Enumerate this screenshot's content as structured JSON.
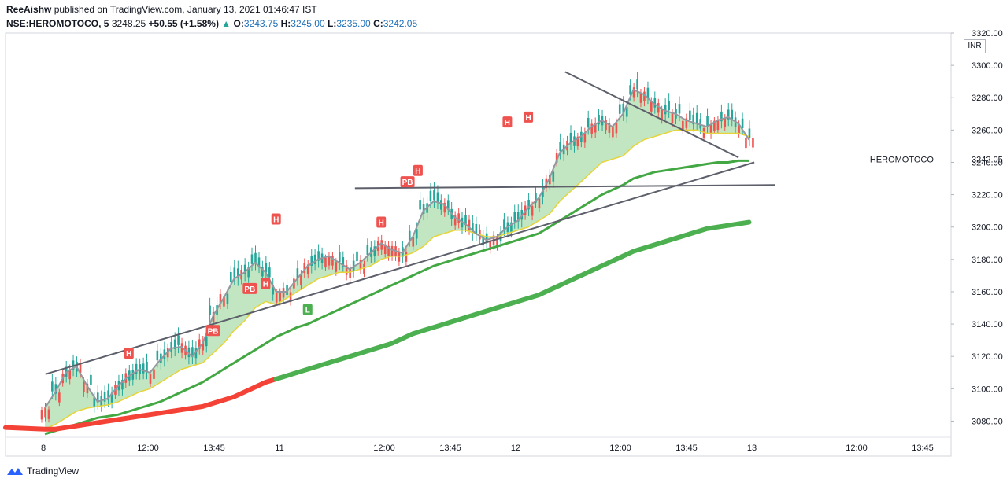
{
  "header": {
    "author": "ReeAishw",
    "published_text": "published on TradingView.com, January 13, 2021 01:46:47 IST",
    "symbol": "NSE:HEROMOTOCO, 5",
    "last": "3248.25",
    "change": "+50.55 (+1.58%)",
    "change_arrow": "▲",
    "o_label": "O:",
    "o": "3243.75",
    "h_label": "H:",
    "h": "3245.00",
    "l_label": "L:",
    "l": "3235.00",
    "c_label": "C:",
    "c": "3242.05"
  },
  "currency": "INR",
  "footer": {
    "brand": "TradingView"
  },
  "colors": {
    "up": "#26a69a",
    "down": "#ef5350",
    "ema_gray": "#9598a1",
    "ema_yellow": "#e6d43a",
    "band": "#8fd18f",
    "ema_green": "#43a843",
    "ema_red": "#f44336",
    "trend": "#5d606b",
    "marker": "#ef5350"
  },
  "chart_data": {
    "type": "line",
    "symbol": "HEROMOTOCO",
    "last_price_label": "3242.05",
    "ylim": [
      3070,
      3320
    ],
    "y_ticks": [
      3080,
      3100,
      3120,
      3140,
      3160,
      3180,
      3200,
      3220,
      3240,
      3260,
      3280,
      3300,
      3320
    ],
    "x_ticks": [
      "8",
      "12:00",
      "13:45",
      "11",
      "12:00",
      "13:45",
      "12",
      "12:00",
      "13:45",
      "13",
      "12:00",
      "13:45"
    ],
    "series": [
      {
        "name": "",
        "style": "ema_gray",
        "values": [
          3088,
          3098,
          3110,
          3114,
          3102,
          3092,
          3094,
          3102,
          3108,
          3112,
          3110,
          3118,
          3125,
          3126,
          3120,
          3128,
          3145,
          3156,
          3168,
          3172,
          3178,
          3172,
          3160,
          3160,
          3168,
          3176,
          3180,
          3182,
          3178,
          3174,
          3178,
          3184,
          3190,
          3186,
          3184,
          3194,
          3210,
          3216,
          3214,
          3206,
          3202,
          3196,
          3192,
          3194,
          3200,
          3204,
          3212,
          3218,
          3230,
          3246,
          3252,
          3256,
          3262,
          3266,
          3262,
          3270,
          3285,
          3282,
          3276,
          3272,
          3270,
          3266,
          3264,
          3262,
          3266,
          3268,
          3264,
          3254
        ]
      },
      {
        "name": "",
        "style": "ema_yellow",
        "values": [
          3075,
          3078,
          3082,
          3086,
          3088,
          3089,
          3090,
          3092,
          3095,
          3098,
          3100,
          3104,
          3108,
          3112,
          3114,
          3116,
          3122,
          3128,
          3136,
          3142,
          3150,
          3154,
          3152,
          3156,
          3160,
          3164,
          3168,
          3170,
          3172,
          3172,
          3174,
          3176,
          3180,
          3182,
          3182,
          3184,
          3188,
          3194,
          3196,
          3198,
          3198,
          3196,
          3194,
          3194,
          3196,
          3198,
          3200,
          3204,
          3208,
          3216,
          3222,
          3228,
          3234,
          3240,
          3242,
          3244,
          3250,
          3254,
          3256,
          3258,
          3260,
          3260,
          3260,
          3258,
          3258,
          3258,
          3258,
          3256
        ]
      },
      {
        "name": "",
        "style": "ema_green",
        "values": [
          3072,
          3074,
          3076,
          3078,
          3080,
          3082,
          3083,
          3084,
          3086,
          3088,
          3090,
          3092,
          3095,
          3098,
          3101,
          3104,
          3108,
          3112,
          3116,
          3120,
          3124,
          3128,
          3132,
          3135,
          3138,
          3140,
          3143,
          3146,
          3149,
          3152,
          3155,
          3158,
          3161,
          3164,
          3167,
          3170,
          3173,
          3176,
          3178,
          3180,
          3182,
          3184,
          3186,
          3188,
          3190,
          3192,
          3194,
          3196,
          3200,
          3204,
          3208,
          3212,
          3216,
          3220,
          3223,
          3226,
          3230,
          3232,
          3234,
          3235,
          3236,
          3237,
          3238,
          3239,
          3240,
          3240,
          3241,
          3241
        ]
      },
      {
        "name": "",
        "style": "ema_thick",
        "values": [
          3075,
          3075,
          3076,
          3077,
          3078,
          3079,
          3080,
          3081,
          3082,
          3083,
          3084,
          3085,
          3086,
          3087,
          3088,
          3089,
          3091,
          3093,
          3095,
          3098,
          3101,
          3104,
          3106,
          3108,
          3110,
          3112,
          3114,
          3116,
          3118,
          3120,
          3122,
          3124,
          3126,
          3128,
          3131,
          3134,
          3136,
          3138,
          3140,
          3142,
          3144,
          3146,
          3148,
          3150,
          3152,
          3154,
          3156,
          3158,
          3161,
          3164,
          3167,
          3170,
          3173,
          3176,
          3179,
          3182,
          3185,
          3187,
          3189,
          3191,
          3193,
          3195,
          3197,
          3199,
          3200,
          3201,
          3202,
          3203
        ]
      }
    ],
    "trendlines": [
      {
        "from": [
          0.05,
          3109
        ],
        "to": [
          67.5,
          3240
        ]
      },
      {
        "from": [
          29.5,
          3224
        ],
        "to": [
          69.5,
          3226
        ]
      },
      {
        "from": [
          49.5,
          3296
        ],
        "to": [
          66.0,
          3243
        ]
      }
    ],
    "markers": [
      {
        "label": "H",
        "x": 8.0,
        "y": 3122
      },
      {
        "label": "PB",
        "x": 16.0,
        "y": 3136
      },
      {
        "label": "PB",
        "x": 19.5,
        "y": 3162
      },
      {
        "label": "H",
        "x": 21.0,
        "y": 3165
      },
      {
        "label": "H",
        "x": 22.0,
        "y": 3205
      },
      {
        "label": "L",
        "x": 25.0,
        "y": 3149
      },
      {
        "label": "H",
        "x": 32.0,
        "y": 3203
      },
      {
        "label": "PB",
        "x": 34.5,
        "y": 3228
      },
      {
        "label": "H",
        "x": 35.5,
        "y": 3235
      },
      {
        "label": "H",
        "x": 44.0,
        "y": 3265
      },
      {
        "label": "H",
        "x": 46.0,
        "y": 3268
      }
    ]
  }
}
